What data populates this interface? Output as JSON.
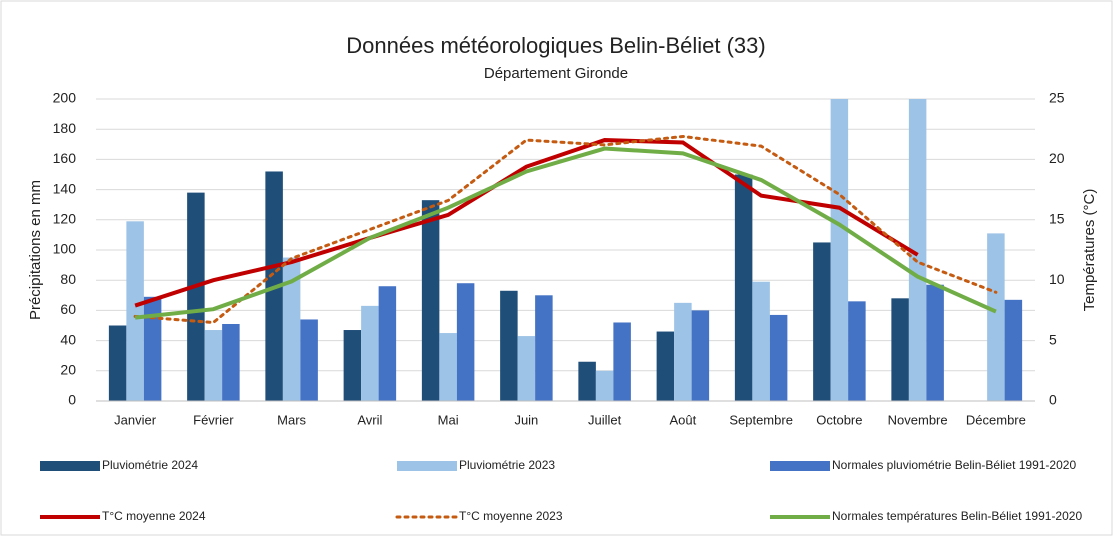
{
  "chart_data": {
    "type": "bar",
    "title": "Données météorologiques Belin-Béliet (33)",
    "subtitle": "Département Gironde",
    "y_label": "Précipitations en mm",
    "y2_label": "Températures (°C)",
    "categories": [
      "Janvier",
      "Février",
      "Mars",
      "Avril",
      "Mai",
      "Juin",
      "Juillet",
      "Août",
      "Septembre",
      "Octobre",
      "Novembre",
      "Décembre"
    ],
    "series": [
      {
        "name": "Pluviométrie 2024",
        "type": "bar",
        "color": "#1f4e79",
        "values": [
          50,
          138,
          152,
          47,
          133,
          73,
          26,
          46,
          150,
          105,
          68,
          null
        ]
      },
      {
        "name": "Pluviométrie 2023",
        "type": "bar",
        "color": "#9dc3e6",
        "values": [
          119,
          47,
          95,
          63,
          45,
          43,
          20,
          65,
          79,
          200,
          200,
          111
        ]
      },
      {
        "name": "Normales pluviométrie Belin-Béliet 1991-2020",
        "type": "bar",
        "color": "#4472c4",
        "values": [
          69,
          51,
          54,
          76,
          78,
          70,
          52,
          60,
          57,
          66,
          77,
          67
        ]
      },
      {
        "name": "T°C moyenne 2024",
        "type": "line",
        "axis": "y2",
        "color": "#c00000",
        "values": [
          7.9,
          10.0,
          11.5,
          13.5,
          15.4,
          19.4,
          21.6,
          21.4,
          17.0,
          16.0,
          12.1,
          null
        ]
      },
      {
        "name": "T°C moyenne 2023",
        "type": "line",
        "axis": "y2",
        "style": "dotted",
        "color": "#c55a11",
        "values": [
          7.0,
          6.5,
          11.8,
          14.2,
          16.6,
          21.6,
          21.2,
          21.9,
          21.1,
          17.1,
          11.5,
          9.0
        ]
      },
      {
        "name": "Normales températures Belin-Béliet 1991-2020",
        "type": "line",
        "axis": "y2",
        "color": "#70ad47",
        "values": [
          6.9,
          7.6,
          9.9,
          13.5,
          16.0,
          19.0,
          20.9,
          20.5,
          18.3,
          14.6,
          10.3,
          7.4
        ]
      }
    ],
    "ylim": [
      0,
      200
    ],
    "yticks": [
      0,
      20,
      40,
      60,
      80,
      100,
      120,
      140,
      160,
      180,
      200
    ],
    "y2lim": [
      0,
      25
    ],
    "y2ticks": [
      0,
      5,
      10,
      15,
      20,
      25
    ],
    "grid": true,
    "legend": "bottom"
  }
}
